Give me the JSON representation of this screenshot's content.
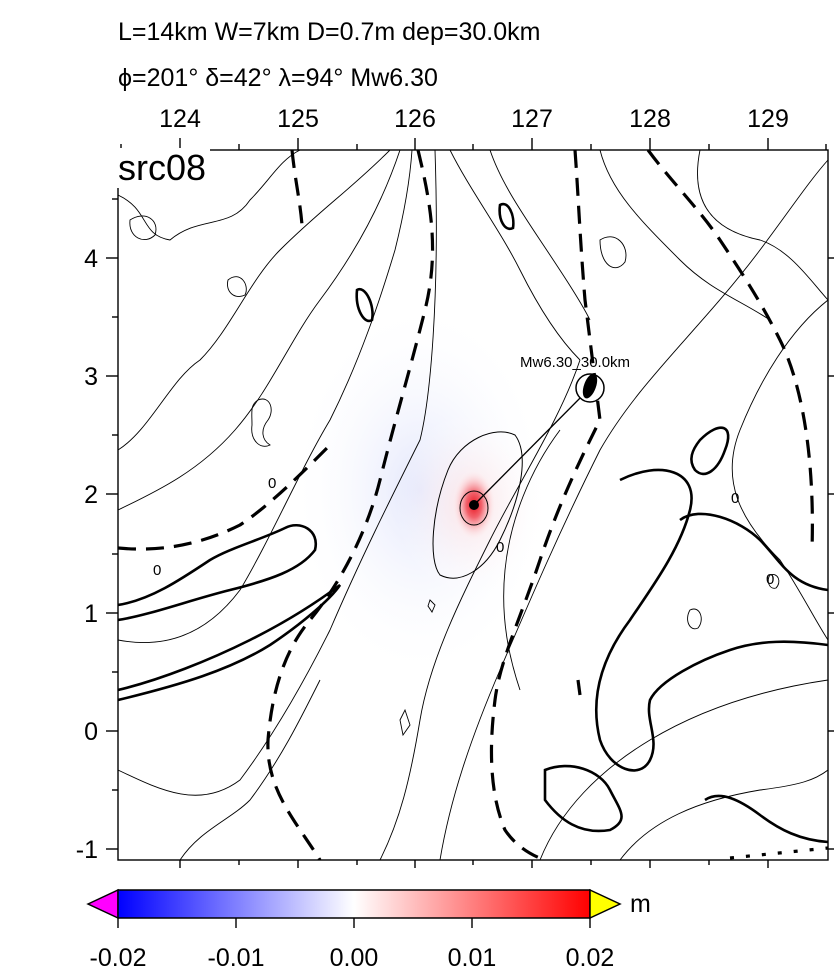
{
  "header": {
    "line1": "L=14km W=7km D=0.7m dep=30.0km",
    "line2": "ϕ=201° δ=42° λ=94° Mw6.30"
  },
  "panel_label": "src08",
  "top_axis": {
    "ticks": [
      "124",
      "125",
      "126",
      "127",
      "128",
      "129"
    ]
  },
  "left_axis": {
    "ticks": [
      "4",
      "3",
      "2",
      "1",
      "0",
      "-1"
    ]
  },
  "event_label": "Mw6.30_30.0km",
  "contour_label": "0",
  "colorbar": {
    "unit": "m",
    "ticks": [
      "-0.02",
      "-0.01",
      "0.00",
      "0.01",
      "0.02"
    ],
    "colors": {
      "low": "#0000ff",
      "mid": "#ffffff",
      "high": "#ff0000",
      "under": "#ff00ff",
      "over": "#ffff00"
    }
  }
}
